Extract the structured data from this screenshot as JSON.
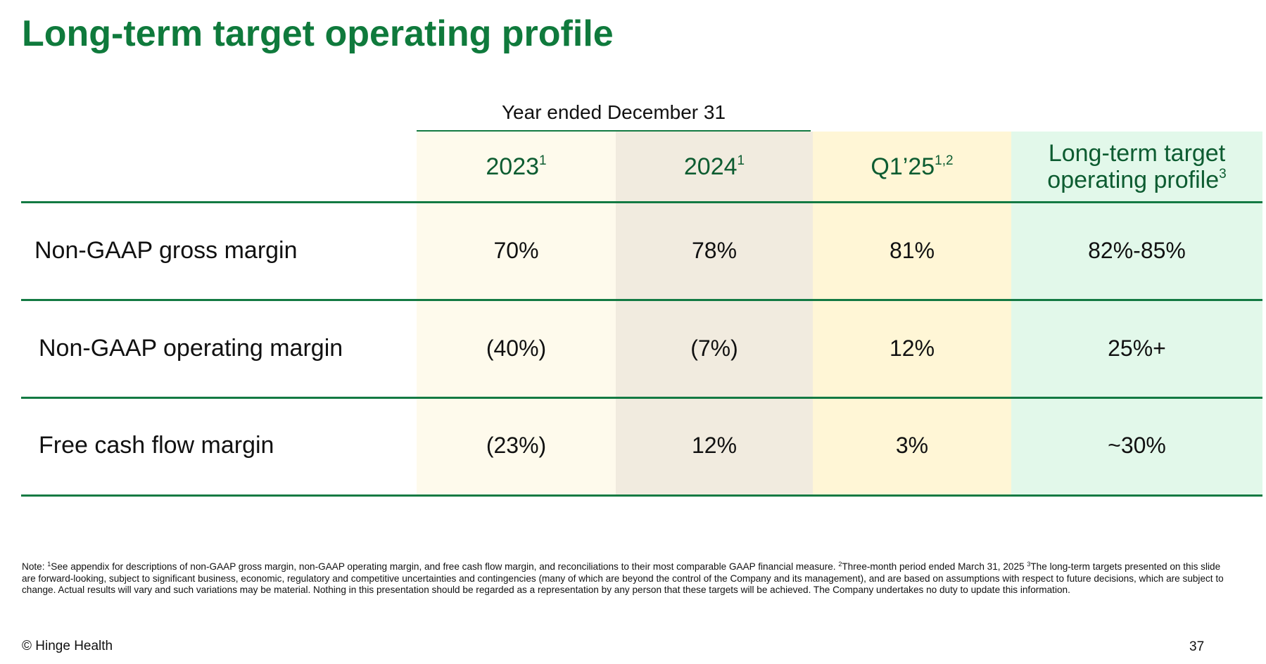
{
  "title": "Long-term target operating profile",
  "group_header": "Year ended December 31",
  "columns": [
    {
      "label": "2023",
      "sup": "1",
      "label2": "",
      "sup2": ""
    },
    {
      "label": "2024",
      "sup": "1",
      "label2": "",
      "sup2": ""
    },
    {
      "label": "Q1’25",
      "sup": "1,2",
      "label2": "",
      "sup2": ""
    },
    {
      "label": "Long-term target",
      "sup": "",
      "label2": "operating profile",
      "sup2": "3"
    }
  ],
  "column_colors": [
    "#fefaec",
    "#f1ebdf",
    "#fff6d6",
    "#e2f8ea"
  ],
  "rows": [
    {
      "label": "Non-GAAP gross margin",
      "values": [
        "70%",
        "78%",
        "81%",
        "82%-85%"
      ]
    },
    {
      "label": "Non-GAAP operating margin",
      "values": [
        "(40%)",
        "(7%)",
        "12%",
        "25%+"
      ]
    },
    {
      "label": "Free cash flow margin",
      "values": [
        "(23%)",
        "12%",
        "3%",
        "~30%"
      ]
    }
  ],
  "note": {
    "prefix": "Note: ",
    "sup1": "1",
    "text1": "See appendix for descriptions of non-GAAP gross margin, non-GAAP operating margin, and free cash flow margin, and reconciliations to their most comparable GAAP financial measure. ",
    "sup2": "2",
    "text2": "Three-month period ended March 31, 2025 ",
    "sup3": "3",
    "text3": "The long-term targets presented on this slide are forward-looking, subject to significant business, economic, regulatory and competitive uncertainties and contingencies (many of which are beyond the control of the Company and its management), and are based on assumptions with respect to future decisions, which are subject to change. Actual results will vary and such variations may be material. Nothing in this presentation should be regarded as a representation by any person that these targets will be achieved. The Company undertakes no duty to update this information."
  },
  "footer": {
    "copyright": "© Hinge Health",
    "page_number": "37"
  },
  "accent_color": "#0f7a3c",
  "rule_color": "#137a43"
}
